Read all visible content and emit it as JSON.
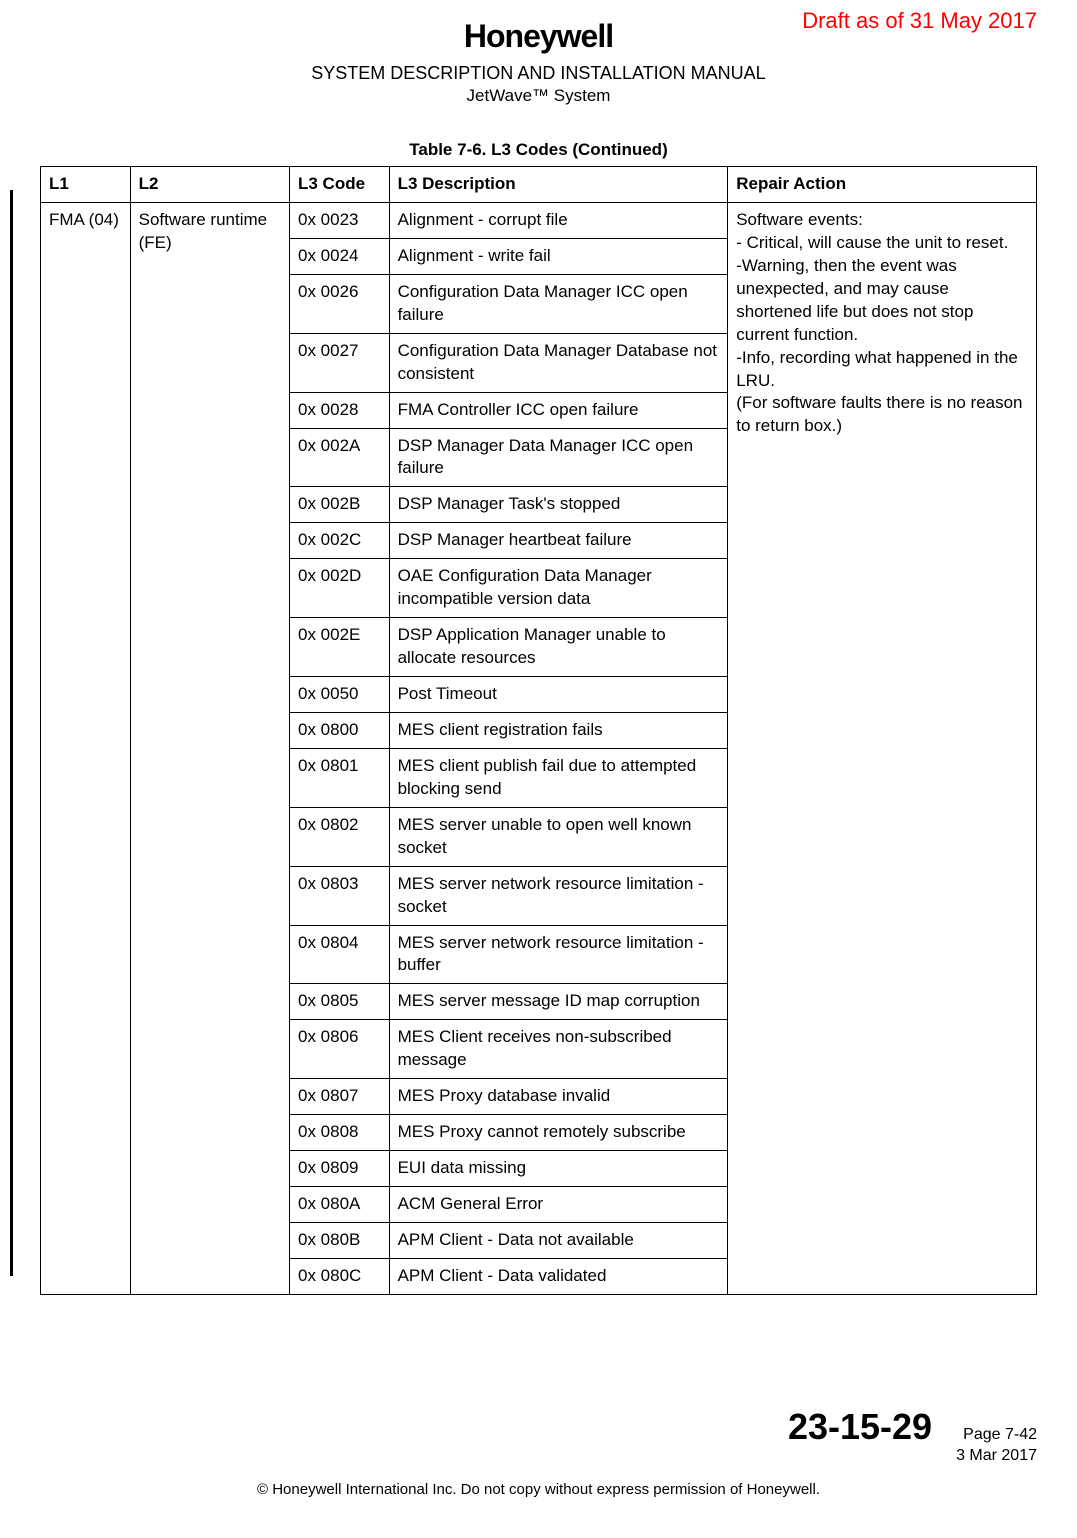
{
  "draft_stamp": "Draft as of 31 May 2017",
  "logo_text": "Honeywell",
  "manual_title": "SYSTEM DESCRIPTION AND INSTALLATION MANUAL",
  "system_name": "JetWave™ System",
  "table_caption": "Table 7-6.   L3 Codes  (Continued)",
  "columns": {
    "l1": "L1",
    "l2": "L2",
    "l3code": "L3 Code",
    "l3desc": "L3 Description",
    "repair": "Repair Action"
  },
  "group": {
    "l1": "FMA (04)",
    "l2": "Software runtime (FE)",
    "repair": "Software events:\n- Critical, will cause the unit to reset.\n-Warning, then the event was unexpected, and may cause shortened life but does not stop current function.\n-Info, recording what happened in the LRU.\n(For software faults there is no reason to return box.)"
  },
  "rows": [
    {
      "code": "0x 0023",
      "desc": "Alignment - corrupt file"
    },
    {
      "code": "0x 0024",
      "desc": "Alignment - write fail"
    },
    {
      "code": "0x 0026",
      "desc": "Configuration Data Manager ICC open failure"
    },
    {
      "code": "0x 0027",
      "desc": "Configuration Data Manager Database not consistent"
    },
    {
      "code": "0x 0028",
      "desc": "FMA Controller ICC open failure"
    },
    {
      "code": "0x 002A",
      "desc": "DSP Manager Data Manager ICC open failure"
    },
    {
      "code": "0x 002B",
      "desc": "DSP Manager Task's stopped"
    },
    {
      "code": "0x 002C",
      "desc": "DSP Manager heartbeat failure"
    },
    {
      "code": "0x 002D",
      "desc": "OAE Configuration Data Manager incompatible version data"
    },
    {
      "code": "0x 002E",
      "desc": "DSP Application Manager unable to allocate resources"
    },
    {
      "code": "0x 0050",
      "desc": "Post Timeout"
    },
    {
      "code": "0x 0800",
      "desc": "MES client registration fails"
    },
    {
      "code": "0x 0801",
      "desc": "MES client publish fail due to attempted blocking send"
    },
    {
      "code": "0x 0802",
      "desc": "MES server unable to open well known socket"
    },
    {
      "code": "0x 0803",
      "desc": "MES server network resource limitation - socket"
    },
    {
      "code": "0x 0804",
      "desc": "MES server network resource limitation - buffer"
    },
    {
      "code": "0x 0805",
      "desc": "MES server message ID map corruption"
    },
    {
      "code": "0x 0806",
      "desc": "MES Client receives non-subscribed message"
    },
    {
      "code": "0x 0807",
      "desc": "MES Proxy database invalid"
    },
    {
      "code": "0x 0808",
      "desc": "MES Proxy cannot remotely subscribe"
    },
    {
      "code": "0x 0809",
      "desc": "EUI data missing"
    },
    {
      "code": "0x 080A",
      "desc": "ACM General Error"
    },
    {
      "code": "0x 080B",
      "desc": "APM Client - Data not available"
    },
    {
      "code": "0x 080C",
      "desc": "APM Client - Data validated"
    }
  ],
  "footer": {
    "doc_number": "23-15-29",
    "page_number": "Page 7-42",
    "doc_date": "3 Mar 2017",
    "copyright": "© Honeywell International Inc. Do not copy without express permission of Honeywell."
  },
  "colors": {
    "draft": "#ff0000",
    "text": "#000000",
    "border": "#000000",
    "background": "#ffffff"
  },
  "fontsizes": {
    "draft": 22,
    "logo": 32,
    "title": 18,
    "body": 17,
    "docnum": 36,
    "footer_small": 15
  }
}
